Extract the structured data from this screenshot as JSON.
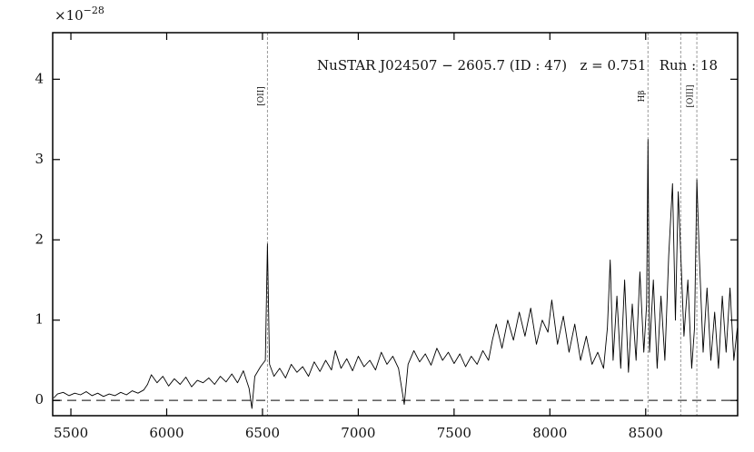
{
  "chart_data": {
    "type": "line",
    "annotation": "NuSTAR J024507 − 2605.7 (ID : 47)   z = 0.751   Run : 18",
    "y_offset": {
      "base": "×10",
      "exponent": "−28"
    },
    "xlim": [
      5405,
      8980
    ],
    "ylim": [
      -0.19,
      4.58
    ],
    "xticks": [
      5500,
      6000,
      6500,
      7000,
      7500,
      8000,
      8500
    ],
    "yticks": [
      0,
      1,
      2,
      3,
      4
    ],
    "reference_line": 0,
    "emission_lines": [
      {
        "x": 6526,
        "label": "[OII]"
      },
      {
        "x": 8512,
        "label": "Hβ"
      },
      {
        "x": 8683
      },
      {
        "x": 8767,
        "label": "[OIII]"
      }
    ],
    "series": [
      {
        "color": "#000000",
        "x": [
          5410,
          5430,
          5460,
          5490,
          5520,
          5550,
          5580,
          5610,
          5640,
          5670,
          5700,
          5730,
          5760,
          5790,
          5820,
          5850,
          5880,
          5900,
          5920,
          5950,
          5980,
          6010,
          6040,
          6070,
          6100,
          6130,
          6160,
          6190,
          6220,
          6250,
          6280,
          6310,
          6340,
          6370,
          6400,
          6430,
          6445,
          6460,
          6490,
          6515,
          6526,
          6537,
          6560,
          6590,
          6620,
          6650,
          6680,
          6710,
          6740,
          6770,
          6800,
          6830,
          6860,
          6880,
          6910,
          6940,
          6970,
          7000,
          7030,
          7060,
          7090,
          7120,
          7150,
          7180,
          7210,
          7240,
          7260,
          7290,
          7320,
          7350,
          7380,
          7410,
          7440,
          7470,
          7500,
          7530,
          7560,
          7590,
          7620,
          7650,
          7680,
          7700,
          7720,
          7750,
          7780,
          7810,
          7840,
          7870,
          7900,
          7930,
          7960,
          7990,
          8010,
          8040,
          8070,
          8100,
          8130,
          8160,
          8190,
          8220,
          8250,
          8280,
          8300,
          8315,
          8330,
          8350,
          8370,
          8390,
          8410,
          8430,
          8450,
          8470,
          8490,
          8505,
          8512,
          8520,
          8540,
          8560,
          8580,
          8600,
          8620,
          8640,
          8655,
          8670,
          8685,
          8700,
          8720,
          8740,
          8755,
          8767,
          8780,
          8800,
          8820,
          8840,
          8860,
          8880,
          8900,
          8920,
          8940,
          8960,
          8978
        ],
        "values": [
          0.03,
          0.08,
          0.1,
          0.06,
          0.09,
          0.07,
          0.11,
          0.06,
          0.09,
          0.05,
          0.08,
          0.06,
          0.1,
          0.07,
          0.12,
          0.09,
          0.13,
          0.2,
          0.32,
          0.22,
          0.3,
          0.18,
          0.27,
          0.2,
          0.29,
          0.17,
          0.25,
          0.22,
          0.28,
          0.2,
          0.3,
          0.23,
          0.33,
          0.22,
          0.37,
          0.15,
          -0.1,
          0.3,
          0.42,
          0.5,
          1.95,
          0.45,
          0.3,
          0.4,
          0.28,
          0.45,
          0.35,
          0.42,
          0.3,
          0.48,
          0.36,
          0.5,
          0.38,
          0.62,
          0.4,
          0.52,
          0.37,
          0.55,
          0.42,
          0.5,
          0.38,
          0.6,
          0.45,
          0.55,
          0.4,
          -0.05,
          0.45,
          0.62,
          0.48,
          0.58,
          0.44,
          0.65,
          0.5,
          0.6,
          0.46,
          0.58,
          0.42,
          0.55,
          0.45,
          0.62,
          0.5,
          0.75,
          0.95,
          0.65,
          1.0,
          0.75,
          1.1,
          0.8,
          1.15,
          0.7,
          1.0,
          0.85,
          1.25,
          0.7,
          1.05,
          0.6,
          0.95,
          0.5,
          0.8,
          0.45,
          0.6,
          0.4,
          0.9,
          1.75,
          0.5,
          1.3,
          0.4,
          1.5,
          0.35,
          1.2,
          0.5,
          1.6,
          0.6,
          1.2,
          3.25,
          0.6,
          1.5,
          0.4,
          1.3,
          0.5,
          1.8,
          2.7,
          1.0,
          2.6,
          1.7,
          0.8,
          1.5,
          0.4,
          0.9,
          2.75,
          1.8,
          0.6,
          1.4,
          0.5,
          1.1,
          0.4,
          1.3,
          0.6,
          1.4,
          0.5,
          0.9
        ]
      }
    ]
  }
}
